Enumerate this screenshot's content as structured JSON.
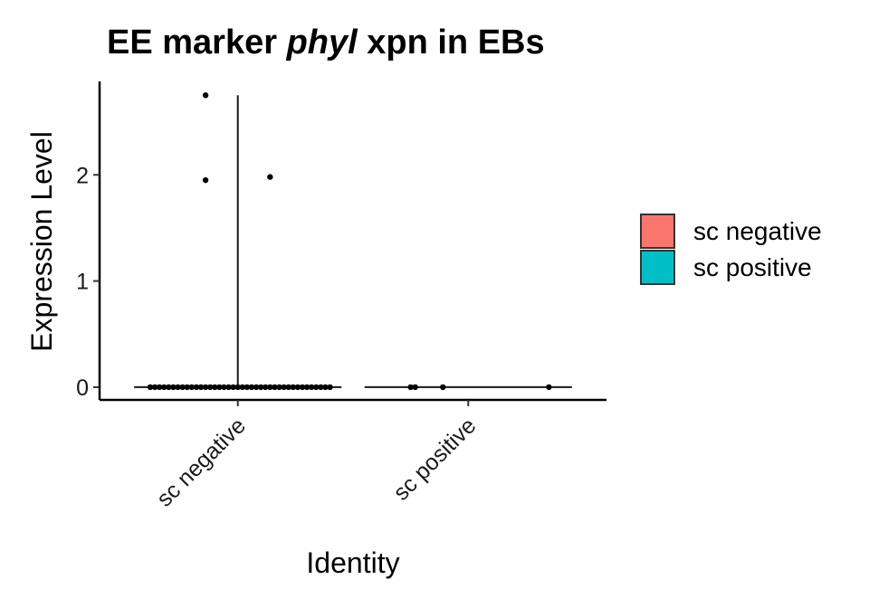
{
  "chart_data": {
    "type": "violin",
    "title": {
      "pre": "EE marker ",
      "italic": "phyl",
      "post": " xpn in EBs"
    },
    "xlabel": "Identity",
    "ylabel": "Expression Level",
    "categories": [
      "sc negative",
      "sc positive"
    ],
    "ylim": [
      -0.12,
      2.88
    ],
    "yticks": [
      0,
      1,
      2
    ],
    "grid": false,
    "legend": {
      "position": "right",
      "entries": [
        {
          "label": "sc negative",
          "color": "#F8766D"
        },
        {
          "label": "sc positive",
          "color": "#00BFC4"
        }
      ]
    },
    "series": [
      {
        "category": "sc negative",
        "color": "#F8766D",
        "violin_max": 2.75,
        "points": [
          {
            "x": 0.86,
            "y": 2.75
          },
          {
            "x": 0.86,
            "y": 1.95
          },
          {
            "x": 1.14,
            "y": 1.98
          },
          {
            "x": 0.62,
            "y": 0
          },
          {
            "x": 0.64,
            "y": 0
          },
          {
            "x": 0.66,
            "y": 0
          },
          {
            "x": 0.68,
            "y": 0
          },
          {
            "x": 0.7,
            "y": 0
          },
          {
            "x": 0.72,
            "y": 0
          },
          {
            "x": 0.74,
            "y": 0
          },
          {
            "x": 0.76,
            "y": 0
          },
          {
            "x": 0.78,
            "y": 0
          },
          {
            "x": 0.8,
            "y": 0
          },
          {
            "x": 0.82,
            "y": 0
          },
          {
            "x": 0.84,
            "y": 0
          },
          {
            "x": 0.86,
            "y": 0
          },
          {
            "x": 0.88,
            "y": 0
          },
          {
            "x": 0.9,
            "y": 0
          },
          {
            "x": 0.92,
            "y": 0
          },
          {
            "x": 0.94,
            "y": 0
          },
          {
            "x": 0.96,
            "y": 0
          },
          {
            "x": 0.98,
            "y": 0
          },
          {
            "x": 1.0,
            "y": 0
          },
          {
            "x": 1.02,
            "y": 0
          },
          {
            "x": 1.04,
            "y": 0
          },
          {
            "x": 1.06,
            "y": 0
          },
          {
            "x": 1.08,
            "y": 0
          },
          {
            "x": 1.1,
            "y": 0
          },
          {
            "x": 1.12,
            "y": 0
          },
          {
            "x": 1.14,
            "y": 0
          },
          {
            "x": 1.16,
            "y": 0
          },
          {
            "x": 1.18,
            "y": 0
          },
          {
            "x": 1.2,
            "y": 0
          },
          {
            "x": 1.22,
            "y": 0
          },
          {
            "x": 1.24,
            "y": 0
          },
          {
            "x": 1.26,
            "y": 0
          },
          {
            "x": 1.28,
            "y": 0
          },
          {
            "x": 1.3,
            "y": 0
          },
          {
            "x": 1.32,
            "y": 0
          },
          {
            "x": 1.34,
            "y": 0
          },
          {
            "x": 1.36,
            "y": 0
          },
          {
            "x": 1.38,
            "y": 0
          },
          {
            "x": 1.4,
            "y": 0
          }
        ]
      },
      {
        "category": "sc positive",
        "color": "#00BFC4",
        "violin_max": 0,
        "points": [
          {
            "x": 1.75,
            "y": 0
          },
          {
            "x": 1.77,
            "y": 0
          },
          {
            "x": 1.89,
            "y": 0
          },
          {
            "x": 2.35,
            "y": 0
          }
        ]
      }
    ]
  }
}
